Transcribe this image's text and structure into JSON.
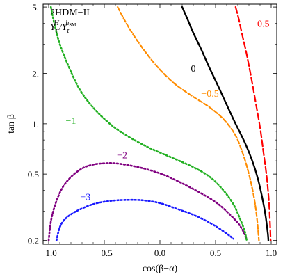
{
  "chart_data": {
    "type": "line",
    "legend": {
      "model": "2HDM−II",
      "ratio_prefix": "Y",
      "ratio_sub1": "t",
      "ratio_sup1": "H",
      "ratio_sep": "/Y",
      "ratio_sub2": "t",
      "ratio_sup2": "h",
      "ratio_sup2_sub": "SM"
    },
    "xlabel": "cos(β−α)",
    "ylabel": "tan β",
    "xlim": [
      -1.05,
      1.05
    ],
    "ylim": [
      0.19,
      5.2
    ],
    "yscale": "log",
    "x_ticks": [
      {
        "value": -1.0,
        "label": "−1.0"
      },
      {
        "value": -0.5,
        "label": "−0.5"
      },
      {
        "value": 0.0,
        "label": "0.0"
      },
      {
        "value": 0.5,
        "label": "0.5"
      },
      {
        "value": 1.0,
        "label": "1.0"
      }
    ],
    "y_ticks": [
      {
        "value": 0.2,
        "label": "0.2"
      },
      {
        "value": 0.5,
        "label": "0.5"
      },
      {
        "value": 1.0,
        "label": "1."
      },
      {
        "value": 2.0,
        "label": "2."
      },
      {
        "value": 5.0,
        "label": "5."
      }
    ],
    "series": [
      {
        "name": "−3",
        "color": "#1a1aff",
        "dash": "dot",
        "label_at": [
          -0.67,
          0.35
        ],
        "points": [
          [
            -0.93,
            0.2
          ],
          [
            -0.9,
            0.24
          ],
          [
            -0.85,
            0.27
          ],
          [
            -0.75,
            0.3
          ],
          [
            -0.6,
            0.33
          ],
          [
            -0.45,
            0.345
          ],
          [
            -0.3,
            0.35
          ],
          [
            -0.15,
            0.348
          ],
          [
            0.0,
            0.335
          ],
          [
            0.15,
            0.31
          ],
          [
            0.3,
            0.285
          ],
          [
            0.45,
            0.255
          ],
          [
            0.58,
            0.225
          ],
          [
            0.66,
            0.205
          ]
        ]
      },
      {
        "name": "−2",
        "color": "#800080",
        "dash": "dot",
        "label_at": [
          -0.34,
          0.62
        ],
        "points": [
          [
            -1.0,
            0.2
          ],
          [
            -0.98,
            0.26
          ],
          [
            -0.94,
            0.33
          ],
          [
            -0.88,
            0.41
          ],
          [
            -0.8,
            0.48
          ],
          [
            -0.7,
            0.54
          ],
          [
            -0.6,
            0.57
          ],
          [
            -0.5,
            0.58
          ],
          [
            -0.4,
            0.58
          ],
          [
            -0.25,
            0.56
          ],
          [
            -0.1,
            0.53
          ],
          [
            0.05,
            0.49
          ],
          [
            0.2,
            0.44
          ],
          [
            0.35,
            0.39
          ],
          [
            0.5,
            0.34
          ],
          [
            0.62,
            0.29
          ],
          [
            0.72,
            0.245
          ],
          [
            0.78,
            0.205
          ]
        ]
      },
      {
        "name": "−1",
        "color": "#22b022",
        "dash": "dot",
        "label_at": [
          -0.8,
          1.0
        ],
        "points": [
          [
            -0.98,
            5.0
          ],
          [
            -0.95,
            4.0
          ],
          [
            -0.9,
            3.0
          ],
          [
            -0.82,
            2.2
          ],
          [
            -0.72,
            1.6
          ],
          [
            -0.6,
            1.25
          ],
          [
            -0.45,
            1.0
          ],
          [
            -0.3,
            0.85
          ],
          [
            -0.1,
            0.72
          ],
          [
            0.1,
            0.63
          ],
          [
            0.3,
            0.55
          ],
          [
            0.45,
            0.48
          ],
          [
            0.57,
            0.4
          ],
          [
            0.66,
            0.33
          ],
          [
            0.72,
            0.27
          ],
          [
            0.76,
            0.23
          ],
          [
            0.78,
            0.2
          ]
        ]
      },
      {
        "name": "−0.5",
        "color": "#ff8c00",
        "dash": "dash",
        "label_at": [
          0.45,
          1.45
        ],
        "points": [
          [
            -0.38,
            5.0
          ],
          [
            -0.32,
            4.2
          ],
          [
            -0.25,
            3.5
          ],
          [
            -0.15,
            2.8
          ],
          [
            -0.05,
            2.3
          ],
          [
            0.05,
            1.95
          ],
          [
            0.15,
            1.7
          ],
          [
            0.3,
            1.45
          ],
          [
            0.45,
            1.25
          ],
          [
            0.58,
            1.05
          ],
          [
            0.68,
            0.85
          ],
          [
            0.75,
            0.65
          ],
          [
            0.8,
            0.5
          ],
          [
            0.84,
            0.38
          ],
          [
            0.87,
            0.28
          ],
          [
            0.89,
            0.2
          ]
        ]
      },
      {
        "name": "0",
        "color": "#000000",
        "dash": "solid",
        "label_at": [
          0.3,
          2.05
        ],
        "points": [
          [
            0.2,
            5.0
          ],
          [
            0.25,
            4.2
          ],
          [
            0.3,
            3.5
          ],
          [
            0.37,
            2.8
          ],
          [
            0.44,
            2.2
          ],
          [
            0.52,
            1.7
          ],
          [
            0.6,
            1.3
          ],
          [
            0.68,
            1.0
          ],
          [
            0.76,
            0.78
          ],
          [
            0.83,
            0.6
          ],
          [
            0.88,
            0.47
          ],
          [
            0.92,
            0.36
          ],
          [
            0.95,
            0.28
          ],
          [
            0.97,
            0.22
          ],
          [
            0.975,
            0.2
          ]
        ]
      },
      {
        "name": "0.5",
        "color": "#ff0000",
        "dash": "longdash",
        "label_at": [
          0.93,
          3.8
        ],
        "points": [
          [
            0.68,
            5.0
          ],
          [
            0.71,
            4.2
          ],
          [
            0.74,
            3.4
          ],
          [
            0.78,
            2.6
          ],
          [
            0.82,
            1.9
          ],
          [
            0.86,
            1.35
          ],
          [
            0.9,
            0.95
          ],
          [
            0.93,
            0.68
          ],
          [
            0.96,
            0.48
          ],
          [
            0.98,
            0.34
          ],
          [
            0.99,
            0.25
          ],
          [
            0.995,
            0.2
          ]
        ]
      }
    ]
  }
}
